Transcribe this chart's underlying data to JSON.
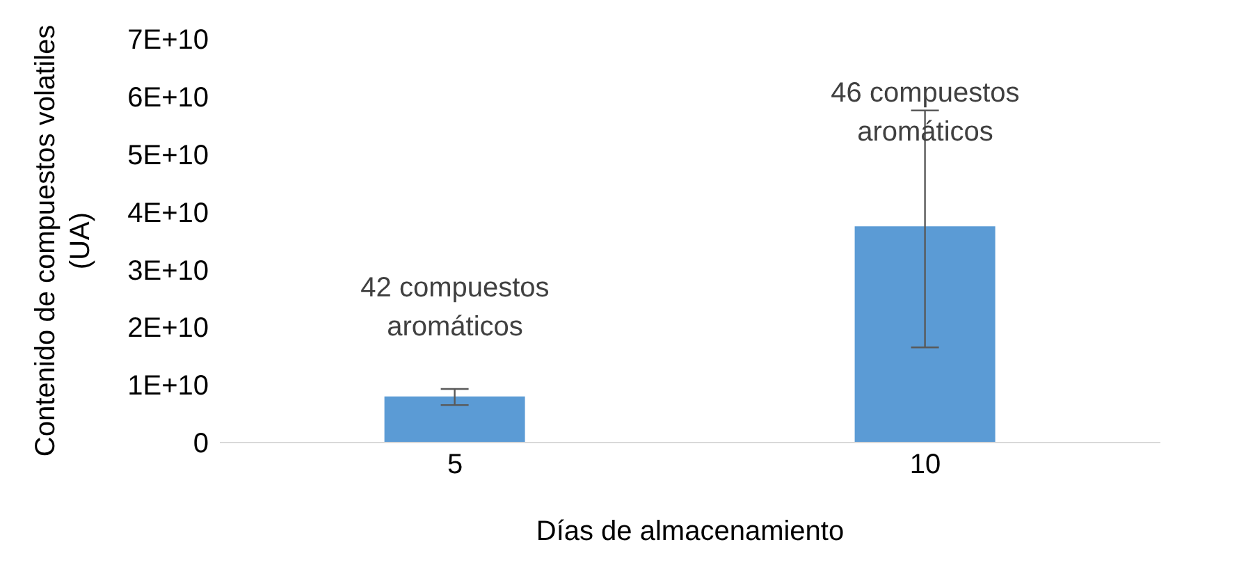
{
  "chart_data": {
    "type": "bar",
    "xlabel": "Días de almacenamiento",
    "ylabel": "Contenido de compuestos volatiles (UA)",
    "categories": [
      "5",
      "10"
    ],
    "values": [
      8000000000,
      37500000000
    ],
    "color": "#5b9bd5",
    "errors": [
      [
        6500000000,
        9300000000
      ],
      [
        16500000000,
        57600000000
      ]
    ],
    "ylim": [
      0,
      70000000000
    ],
    "yticks": [
      0,
      {
        "value": 10000000000,
        "label": "1E+10"
      },
      {
        "value": 20000000000,
        "label": "2E+10"
      },
      {
        "value": 30000000000,
        "label": "3E+10"
      },
      {
        "value": 40000000000,
        "label": "4E+10"
      },
      {
        "value": 50000000000,
        "label": "5E+10"
      },
      {
        "value": 60000000000,
        "label": "6E+10"
      },
      {
        "value": 70000000000,
        "label": "7E+10"
      }
    ],
    "grid": false,
    "legend": false,
    "annotations": [
      "42 compuestos aromáticos",
      "46 compuestos aromáticos"
    ]
  }
}
